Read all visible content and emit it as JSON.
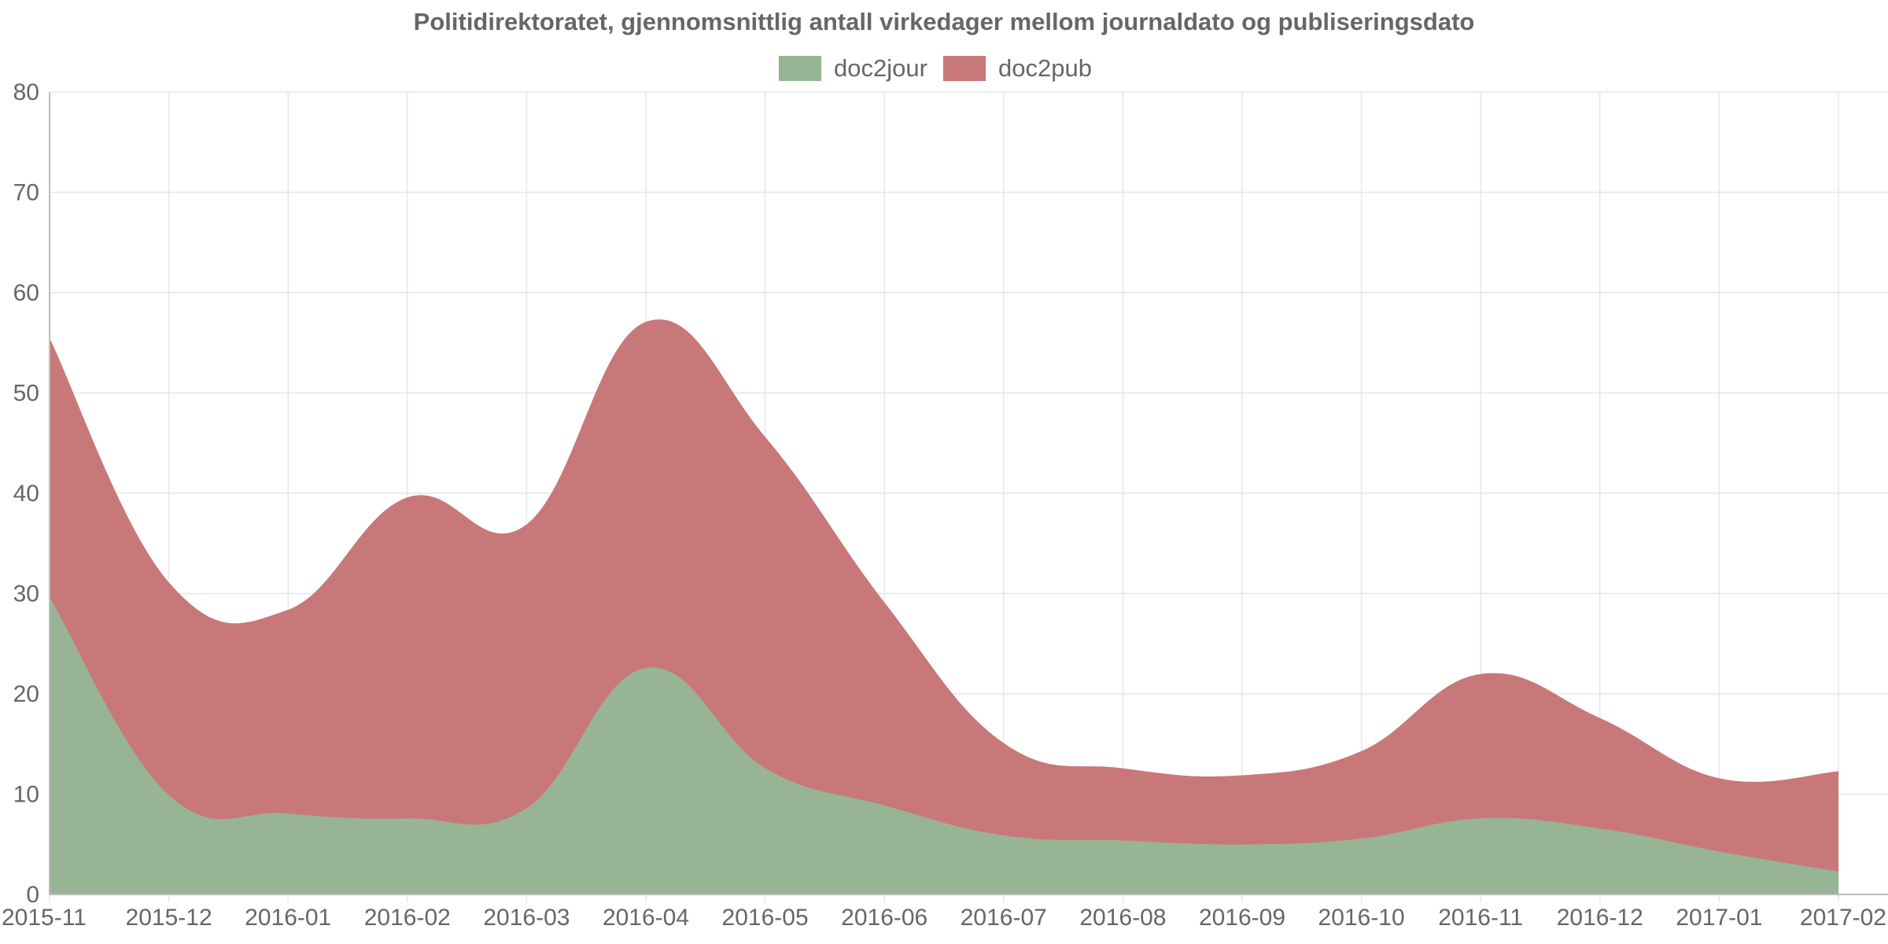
{
  "chart_data": {
    "type": "area",
    "stacked": true,
    "title": "Politidirektoratet, gjennomsnittlig antall virkedager mellom journaldato og publiseringsdato",
    "xlabel": "",
    "ylabel": "",
    "categories": [
      "2015-11",
      "2015-12",
      "2016-01",
      "2016-02",
      "2016-03",
      "2016-04",
      "2016-05",
      "2016-06",
      "2016-07",
      "2016-08",
      "2016-09",
      "2016-10",
      "2016-11",
      "2016-12",
      "2017-01",
      "2017-02"
    ],
    "yticks": [
      "0",
      "10",
      "20",
      "30",
      "40",
      "50",
      "60",
      "70",
      "80"
    ],
    "ylim": [
      0,
      80
    ],
    "grid": true,
    "legend_position": "top",
    "series": [
      {
        "name": "doc2jour",
        "color": "#97b594",
        "values": [
          29.5,
          9.8,
          8.0,
          7.5,
          8.5,
          22.5,
          12.5,
          8.8,
          5.8,
          5.3,
          4.9,
          5.5,
          7.5,
          6.5,
          4.2,
          2.2
        ]
      },
      {
        "name": "doc2pub",
        "color": "#c87879",
        "values": [
          25.8,
          21.2,
          20.3,
          32.0,
          28.3,
          34.5,
          33.0,
          20.2,
          9.2,
          7.2,
          6.9,
          8.7,
          14.4,
          11.0,
          7.3,
          10.0
        ]
      }
    ]
  }
}
